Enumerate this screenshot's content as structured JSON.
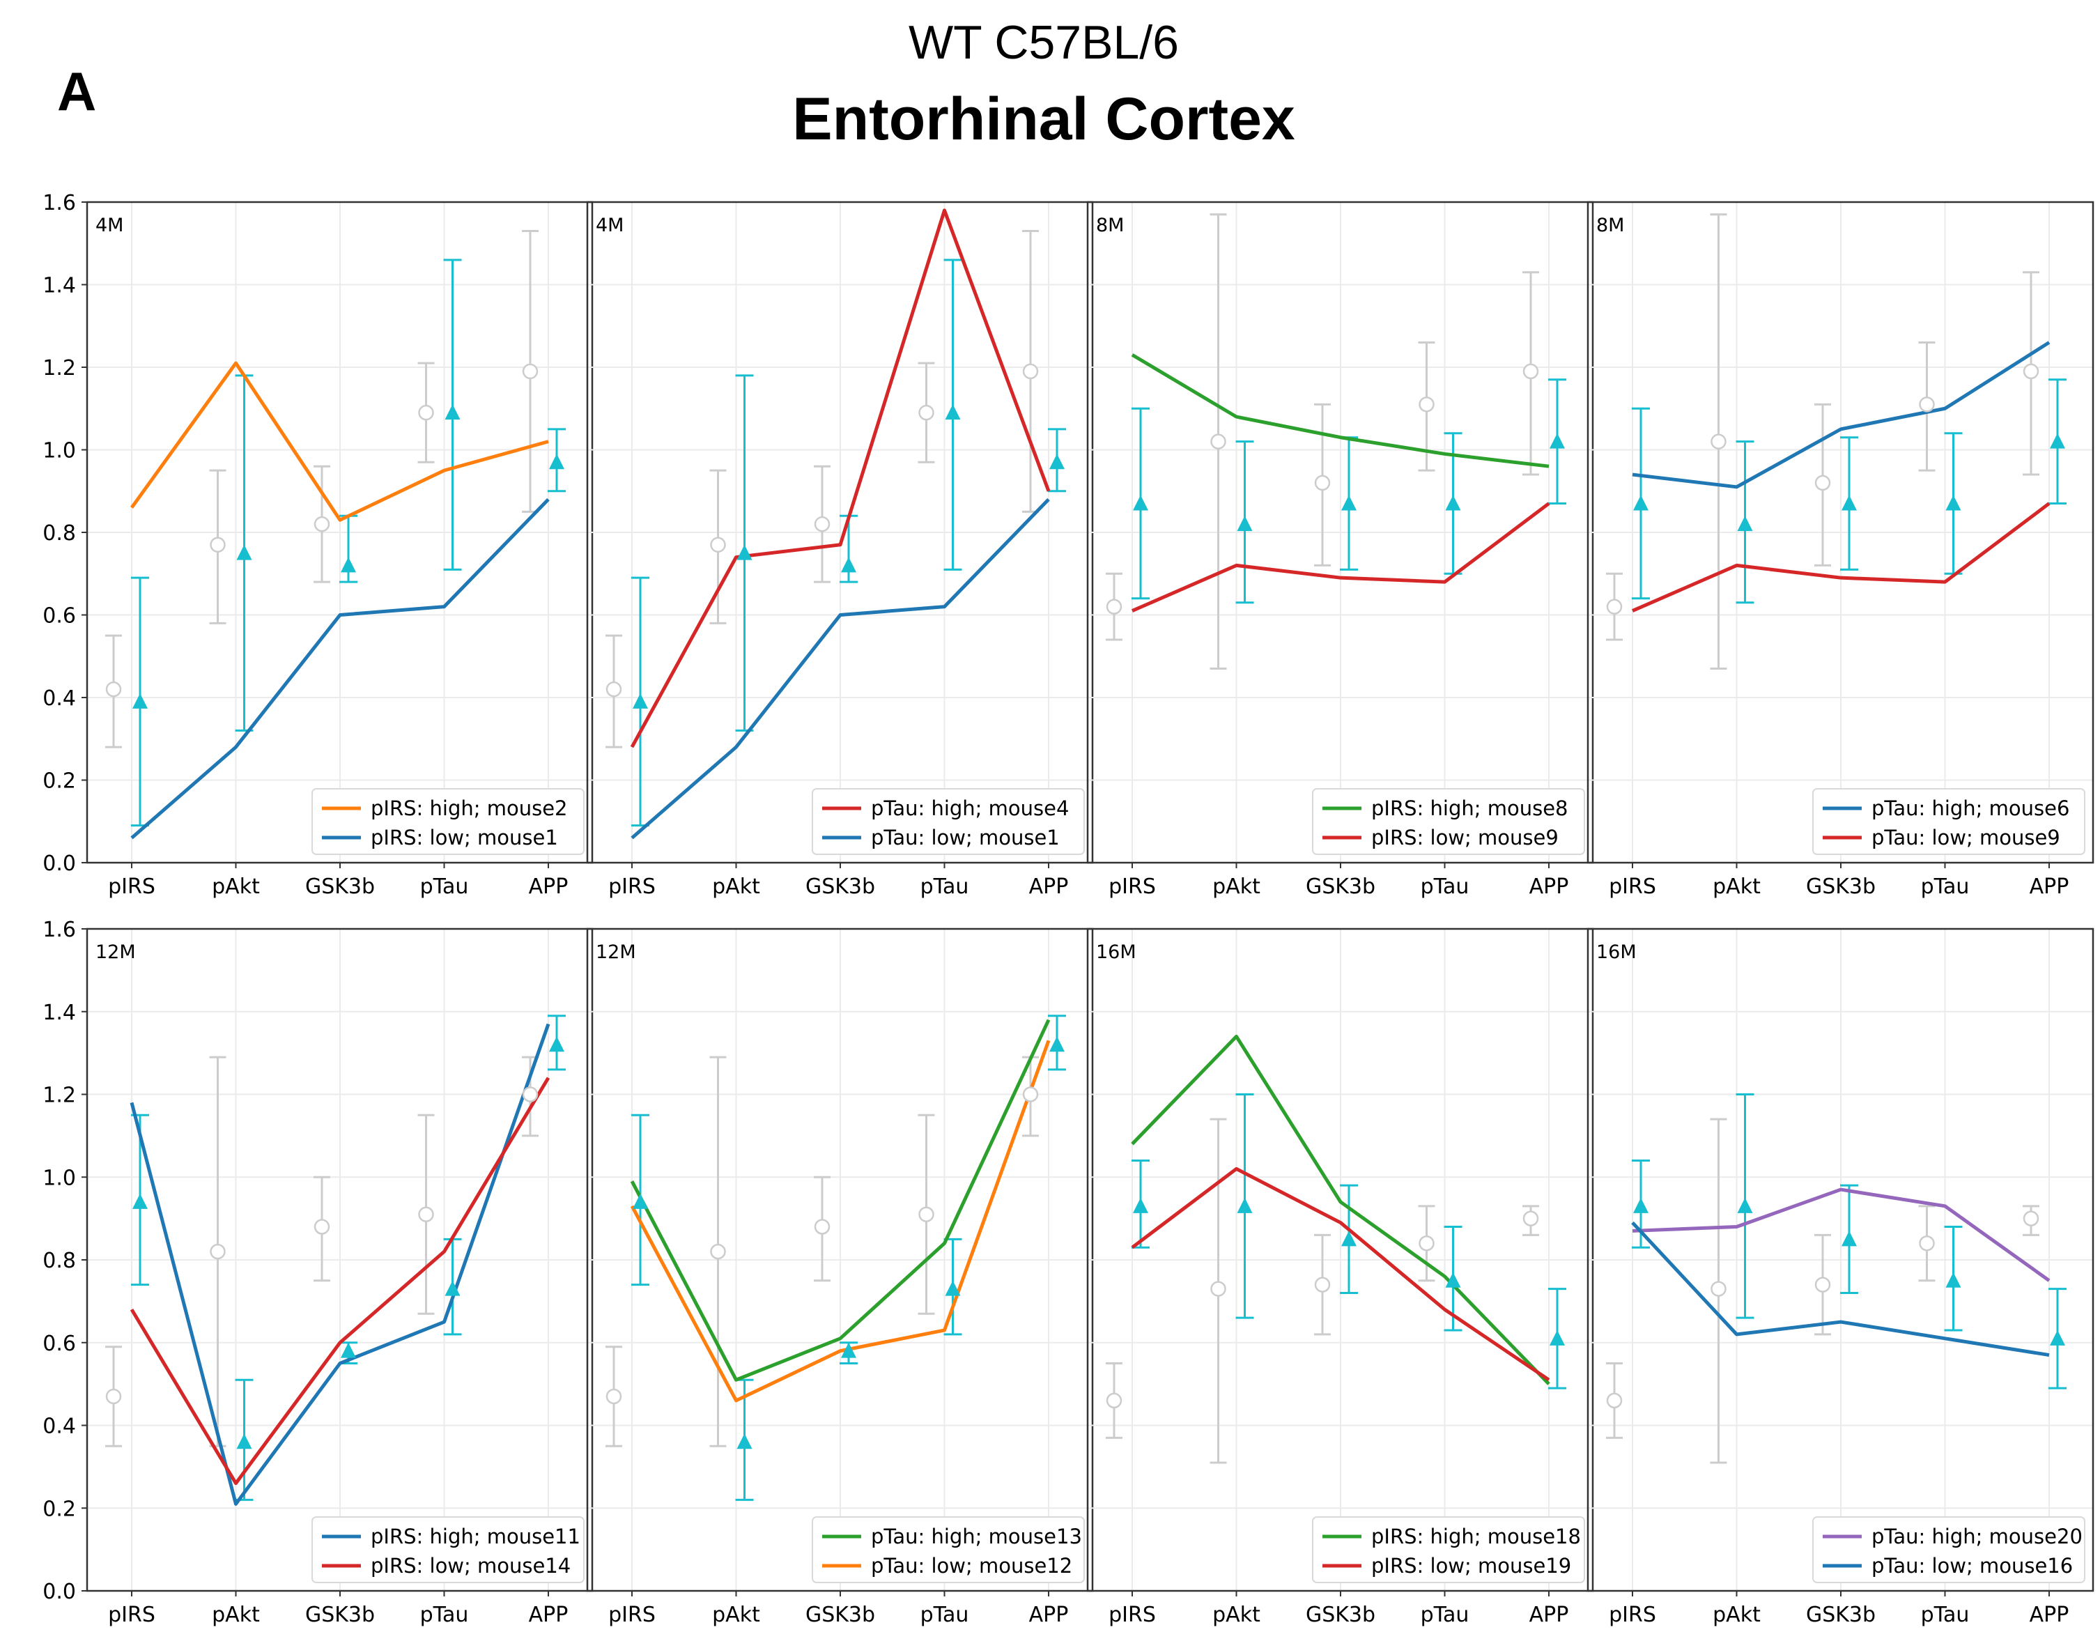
{
  "header": {
    "panel_letter": "A",
    "strain": "WT C57BL/6",
    "region": "Entorhinal Cortex"
  },
  "colors": {
    "orange": "#ff7f0e",
    "blue": "#1f77b4",
    "red": "#d62728",
    "green": "#2ca02c",
    "purple": "#9467bd",
    "cyan": "#17becf",
    "ref": "#cccccc"
  },
  "chart_data": [
    {
      "type": "line",
      "panel": "4M",
      "categories": [
        "pIRS",
        "pAkt",
        "GSK3b",
        "pTau",
        "APP"
      ],
      "ylim": [
        0.0,
        1.6
      ],
      "yticks": [
        "0.0",
        "0.2",
        "0.4",
        "0.6",
        "0.8",
        "1.0",
        "1.2",
        "1.4",
        "1.6"
      ],
      "ref_means": [
        0.42,
        0.77,
        0.82,
        1.09,
        1.19
      ],
      "ref_err": [
        [
          0.28,
          0.55
        ],
        [
          0.58,
          0.95
        ],
        [
          0.68,
          0.96
        ],
        [
          0.97,
          1.21
        ],
        [
          0.85,
          1.53
        ]
      ],
      "group_means": [
        0.39,
        0.75,
        0.72,
        1.09,
        0.97
      ],
      "group_err": [
        [
          0.09,
          0.69
        ],
        [
          0.32,
          1.18
        ],
        [
          0.68,
          0.84
        ],
        [
          0.71,
          1.46
        ],
        [
          0.9,
          1.05
        ]
      ],
      "series": [
        {
          "name": "pIRS: high; mouse2",
          "color": "orange",
          "values": [
            0.86,
            1.21,
            0.83,
            0.95,
            1.02
          ]
        },
        {
          "name": "pIRS: low; mouse1",
          "color": "blue",
          "values": [
            0.06,
            0.28,
            0.6,
            0.62,
            0.88
          ]
        }
      ]
    },
    {
      "type": "line",
      "panel": "4M",
      "categories": [
        "pIRS",
        "pAkt",
        "GSK3b",
        "pTau",
        "APP"
      ],
      "ylim": [
        0.0,
        1.6
      ],
      "yticks": [
        "0.0",
        "0.2",
        "0.4",
        "0.6",
        "0.8",
        "1.0",
        "1.2",
        "1.4",
        "1.6"
      ],
      "ref_means": [
        0.42,
        0.77,
        0.82,
        1.09,
        1.19
      ],
      "ref_err": [
        [
          0.28,
          0.55
        ],
        [
          0.58,
          0.95
        ],
        [
          0.68,
          0.96
        ],
        [
          0.97,
          1.21
        ],
        [
          0.85,
          1.53
        ]
      ],
      "group_means": [
        0.39,
        0.75,
        0.72,
        1.09,
        0.97
      ],
      "group_err": [
        [
          0.09,
          0.69
        ],
        [
          0.32,
          1.18
        ],
        [
          0.68,
          0.84
        ],
        [
          0.71,
          1.46
        ],
        [
          0.9,
          1.05
        ]
      ],
      "series": [
        {
          "name": "pTau: high; mouse4",
          "color": "red",
          "values": [
            0.28,
            0.74,
            0.77,
            1.58,
            0.9
          ]
        },
        {
          "name": "pTau: low; mouse1",
          "color": "blue",
          "values": [
            0.06,
            0.28,
            0.6,
            0.62,
            0.88
          ]
        }
      ]
    },
    {
      "type": "line",
      "panel": "8M",
      "categories": [
        "pIRS",
        "pAkt",
        "GSK3b",
        "pTau",
        "APP"
      ],
      "ylim": [
        0.0,
        1.6
      ],
      "yticks": [
        "0.0",
        "0.2",
        "0.4",
        "0.6",
        "0.8",
        "1.0",
        "1.2",
        "1.4",
        "1.6"
      ],
      "ref_means": [
        0.62,
        1.02,
        0.92,
        1.11,
        1.19
      ],
      "ref_err": [
        [
          0.54,
          0.7
        ],
        [
          0.47,
          1.57
        ],
        [
          0.72,
          1.11
        ],
        [
          0.95,
          1.26
        ],
        [
          0.94,
          1.43
        ]
      ],
      "group_means": [
        0.87,
        0.82,
        0.87,
        0.87,
        1.02
      ],
      "group_err": [
        [
          0.64,
          1.1
        ],
        [
          0.63,
          1.02
        ],
        [
          0.71,
          1.03
        ],
        [
          0.7,
          1.04
        ],
        [
          0.87,
          1.17
        ]
      ],
      "series": [
        {
          "name": "pIRS: high; mouse8",
          "color": "green",
          "values": [
            1.23,
            1.08,
            1.03,
            0.99,
            0.96
          ]
        },
        {
          "name": "pIRS: low; mouse9",
          "color": "red",
          "values": [
            0.61,
            0.72,
            0.69,
            0.68,
            0.87
          ]
        }
      ]
    },
    {
      "type": "line",
      "panel": "8M",
      "categories": [
        "pIRS",
        "pAkt",
        "GSK3b",
        "pTau",
        "APP"
      ],
      "ylim": [
        0.0,
        1.6
      ],
      "yticks": [
        "0.0",
        "0.2",
        "0.4",
        "0.6",
        "0.8",
        "1.0",
        "1.2",
        "1.4",
        "1.6"
      ],
      "ref_means": [
        0.62,
        1.02,
        0.92,
        1.11,
        1.19
      ],
      "ref_err": [
        [
          0.54,
          0.7
        ],
        [
          0.47,
          1.57
        ],
        [
          0.72,
          1.11
        ],
        [
          0.95,
          1.26
        ],
        [
          0.94,
          1.43
        ]
      ],
      "group_means": [
        0.87,
        0.82,
        0.87,
        0.87,
        1.02
      ],
      "group_err": [
        [
          0.64,
          1.1
        ],
        [
          0.63,
          1.02
        ],
        [
          0.71,
          1.03
        ],
        [
          0.7,
          1.04
        ],
        [
          0.87,
          1.17
        ]
      ],
      "series": [
        {
          "name": "pTau: high; mouse6",
          "color": "blue",
          "values": [
            0.94,
            0.91,
            1.05,
            1.1,
            1.26
          ]
        },
        {
          "name": "pTau: low; mouse9",
          "color": "red",
          "values": [
            0.61,
            0.72,
            0.69,
            0.68,
            0.87
          ]
        }
      ]
    },
    {
      "type": "line",
      "panel": "12M",
      "categories": [
        "pIRS",
        "pAkt",
        "GSK3b",
        "pTau",
        "APP"
      ],
      "ylim": [
        0.0,
        1.6
      ],
      "yticks": [
        "0.0",
        "0.2",
        "0.4",
        "0.6",
        "0.8",
        "1.0",
        "1.2",
        "1.4",
        "1.6"
      ],
      "ref_means": [
        0.47,
        0.82,
        0.88,
        0.91,
        1.2
      ],
      "ref_err": [
        [
          0.35,
          0.59
        ],
        [
          0.35,
          1.29
        ],
        [
          0.75,
          1.0
        ],
        [
          0.67,
          1.15
        ],
        [
          1.1,
          1.29
        ]
      ],
      "group_means": [
        0.94,
        0.36,
        0.58,
        0.73,
        1.32
      ],
      "group_err": [
        [
          0.74,
          1.15
        ],
        [
          0.22,
          0.51
        ],
        [
          0.55,
          0.6
        ],
        [
          0.62,
          0.85
        ],
        [
          1.26,
          1.39
        ]
      ],
      "series": [
        {
          "name": "pIRS: high; mouse11",
          "color": "blue",
          "values": [
            1.18,
            0.21,
            0.55,
            0.65,
            1.37
          ]
        },
        {
          "name": "pIRS: low; mouse14",
          "color": "red",
          "values": [
            0.68,
            0.26,
            0.6,
            0.82,
            1.24
          ]
        }
      ]
    },
    {
      "type": "line",
      "panel": "12M",
      "categories": [
        "pIRS",
        "pAkt",
        "GSK3b",
        "pTau",
        "APP"
      ],
      "ylim": [
        0.0,
        1.6
      ],
      "yticks": [
        "0.0",
        "0.2",
        "0.4",
        "0.6",
        "0.8",
        "1.0",
        "1.2",
        "1.4",
        "1.6"
      ],
      "ref_means": [
        0.47,
        0.82,
        0.88,
        0.91,
        1.2
      ],
      "ref_err": [
        [
          0.35,
          0.59
        ],
        [
          0.35,
          1.29
        ],
        [
          0.75,
          1.0
        ],
        [
          0.67,
          1.15
        ],
        [
          1.1,
          1.29
        ]
      ],
      "group_means": [
        0.94,
        0.36,
        0.58,
        0.73,
        1.32
      ],
      "group_err": [
        [
          0.74,
          1.15
        ],
        [
          0.22,
          0.51
        ],
        [
          0.55,
          0.6
        ],
        [
          0.62,
          0.85
        ],
        [
          1.26,
          1.39
        ]
      ],
      "series": [
        {
          "name": "pTau: high; mouse13",
          "color": "green",
          "values": [
            0.99,
            0.51,
            0.61,
            0.84,
            1.38
          ]
        },
        {
          "name": "pTau: low; mouse12",
          "color": "orange",
          "values": [
            0.93,
            0.46,
            0.58,
            0.63,
            1.33
          ]
        }
      ]
    },
    {
      "type": "line",
      "panel": "16M",
      "categories": [
        "pIRS",
        "pAkt",
        "GSK3b",
        "pTau",
        "APP"
      ],
      "ylim": [
        0.0,
        1.6
      ],
      "yticks": [
        "0.0",
        "0.2",
        "0.4",
        "0.6",
        "0.8",
        "1.0",
        "1.2",
        "1.4",
        "1.6"
      ],
      "ref_means": [
        0.46,
        0.73,
        0.74,
        0.84,
        0.9
      ],
      "ref_err": [
        [
          0.37,
          0.55
        ],
        [
          0.31,
          1.14
        ],
        [
          0.62,
          0.86
        ],
        [
          0.75,
          0.93
        ],
        [
          0.86,
          0.93
        ]
      ],
      "group_means": [
        0.93,
        0.93,
        0.85,
        0.75,
        0.61
      ],
      "group_err": [
        [
          0.83,
          1.04
        ],
        [
          0.66,
          1.2
        ],
        [
          0.72,
          0.98
        ],
        [
          0.63,
          0.88
        ],
        [
          0.49,
          0.73
        ]
      ],
      "series": [
        {
          "name": "pIRS: high; mouse18",
          "color": "green",
          "values": [
            1.08,
            1.34,
            0.94,
            0.76,
            0.5
          ]
        },
        {
          "name": "pIRS: low; mouse19",
          "color": "red",
          "values": [
            0.83,
            1.02,
            0.89,
            0.68,
            0.51
          ]
        }
      ]
    },
    {
      "type": "line",
      "panel": "16M",
      "categories": [
        "pIRS",
        "pAkt",
        "GSK3b",
        "pTau",
        "APP"
      ],
      "ylim": [
        0.0,
        1.6
      ],
      "yticks": [
        "0.0",
        "0.2",
        "0.4",
        "0.6",
        "0.8",
        "1.0",
        "1.2",
        "1.4",
        "1.6"
      ],
      "ref_means": [
        0.46,
        0.73,
        0.74,
        0.84,
        0.9
      ],
      "ref_err": [
        [
          0.37,
          0.55
        ],
        [
          0.31,
          1.14
        ],
        [
          0.62,
          0.86
        ],
        [
          0.75,
          0.93
        ],
        [
          0.86,
          0.93
        ]
      ],
      "group_means": [
        0.93,
        0.93,
        0.85,
        0.75,
        0.61
      ],
      "group_err": [
        [
          0.83,
          1.04
        ],
        [
          0.66,
          1.2
        ],
        [
          0.72,
          0.98
        ],
        [
          0.63,
          0.88
        ],
        [
          0.49,
          0.73
        ]
      ],
      "series": [
        {
          "name": "pTau: high; mouse20",
          "color": "purple",
          "values": [
            0.87,
            0.88,
            0.97,
            0.93,
            0.75
          ]
        },
        {
          "name": "pTau: low; mouse16",
          "color": "blue",
          "values": [
            0.89,
            0.62,
            0.65,
            0.61,
            0.57
          ]
        }
      ]
    }
  ]
}
